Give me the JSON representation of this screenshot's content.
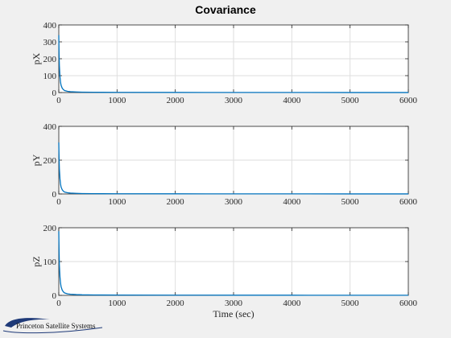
{
  "figure": {
    "title": "Covariance",
    "background": "#f0f0f0",
    "logo_text": "Princeton Satellite Systems",
    "series_color": "#0072bd"
  },
  "chart_data": [
    {
      "type": "line",
      "ylabel": "pX",
      "xlabel": "",
      "xlim": [
        0,
        6000
      ],
      "ylim": [
        0,
        400
      ],
      "xticks": [
        0,
        1000,
        2000,
        3000,
        4000,
        5000,
        6000
      ],
      "yticks": [
        0,
        100,
        200,
        300,
        400
      ],
      "grid": true,
      "series": [
        {
          "x": [
            0,
            5,
            10,
            20,
            30,
            40,
            60,
            80,
            100,
            150,
            200,
            300,
            400,
            600,
            1000,
            2000,
            3000,
            4000,
            5000,
            6000
          ],
          "values": [
            340,
            230,
            160,
            95,
            60,
            42,
            25,
            17,
            12,
            7,
            5,
            3.5,
            2.5,
            1.8,
            1.2,
            0.8,
            0.6,
            0.5,
            0.4,
            0.3
          ]
        }
      ]
    },
    {
      "type": "line",
      "ylabel": "pY",
      "xlabel": "",
      "xlim": [
        0,
        6000
      ],
      "ylim": [
        0,
        400
      ],
      "xticks": [
        0,
        1000,
        2000,
        3000,
        4000,
        5000,
        6000
      ],
      "yticks": [
        0,
        200,
        400
      ],
      "grid": true,
      "series": [
        {
          "x": [
            0,
            5,
            10,
            20,
            30,
            40,
            60,
            80,
            100,
            150,
            200,
            300,
            400,
            600,
            1000,
            2000,
            3000,
            4000,
            5000,
            6000
          ],
          "values": [
            305,
            210,
            150,
            90,
            58,
            40,
            24,
            16,
            11,
            7,
            5,
            3.5,
            2.5,
            1.8,
            1.2,
            0.8,
            0.6,
            0.5,
            0.4,
            0.3
          ]
        }
      ]
    },
    {
      "type": "line",
      "ylabel": "pZ",
      "xlabel": "Time (sec)",
      "xlim": [
        0,
        6000
      ],
      "ylim": [
        0,
        200
      ],
      "xticks": [
        0,
        1000,
        2000,
        3000,
        4000,
        5000,
        6000
      ],
      "yticks": [
        0,
        100,
        200
      ],
      "grid": true,
      "series": [
        {
          "x": [
            0,
            5,
            10,
            20,
            30,
            40,
            60,
            80,
            100,
            150,
            200,
            300,
            400,
            600,
            1000,
            2000,
            3000,
            4000,
            5000,
            6000
          ],
          "values": [
            190,
            130,
            90,
            55,
            36,
            25,
            15,
            10,
            7,
            4.5,
            3.2,
            2.2,
            1.6,
            1.2,
            0.9,
            0.6,
            0.5,
            0.4,
            0.3,
            0.3
          ]
        }
      ]
    }
  ]
}
